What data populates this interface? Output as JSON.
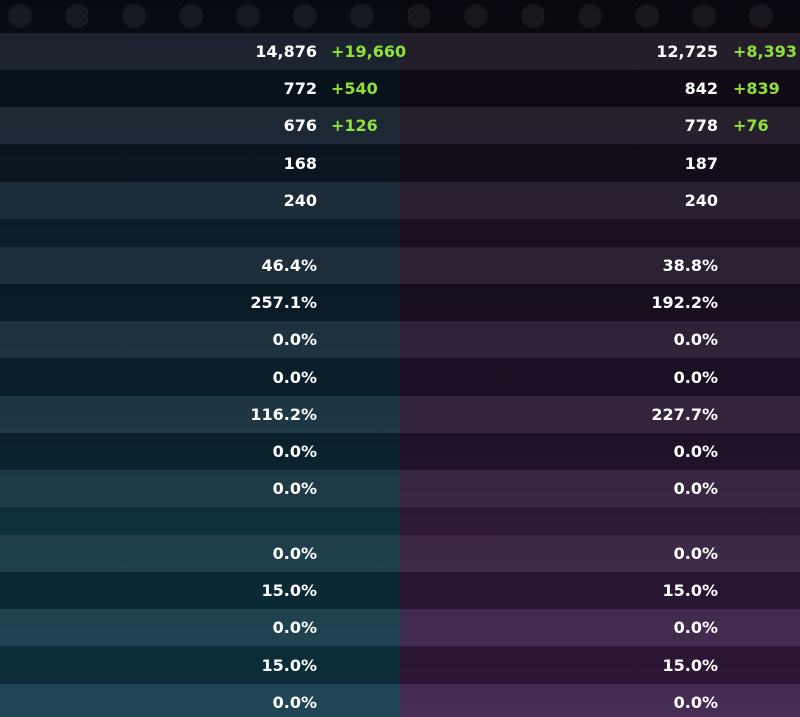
{
  "sections": [
    {
      "rows": [
        {
          "left": "14,876",
          "left_bonus": "+19,660",
          "right": "12,725",
          "right_bonus": "+8,393"
        },
        {
          "left": "772",
          "left_bonus": "+540",
          "right": "842",
          "right_bonus": "+839"
        },
        {
          "left": "676",
          "left_bonus": "+126",
          "right": "778",
          "right_bonus": "+76"
        },
        {
          "left": "168",
          "right": "187"
        },
        {
          "left": "240",
          "right": "240"
        }
      ]
    },
    {
      "rows": [
        {
          "left": "46.4%",
          "right": "38.8%"
        },
        {
          "left": "257.1%",
          "right": "192.2%"
        },
        {
          "left": "0.0%",
          "right": "0.0%"
        },
        {
          "left": "0.0%",
          "right": "0.0%"
        },
        {
          "left": "116.2%",
          "right": "227.7%"
        },
        {
          "left": "0.0%",
          "right": "0.0%"
        },
        {
          "left": "0.0%",
          "right": "0.0%"
        }
      ]
    },
    {
      "rows": [
        {
          "left": "0.0%",
          "right": "0.0%"
        },
        {
          "left": "15.0%",
          "right": "15.0%"
        },
        {
          "left": "0.0%",
          "right": "0.0%"
        },
        {
          "left": "15.0%",
          "right": "15.0%"
        },
        {
          "left": "0.0%",
          "right": "0.0%"
        }
      ]
    }
  ]
}
